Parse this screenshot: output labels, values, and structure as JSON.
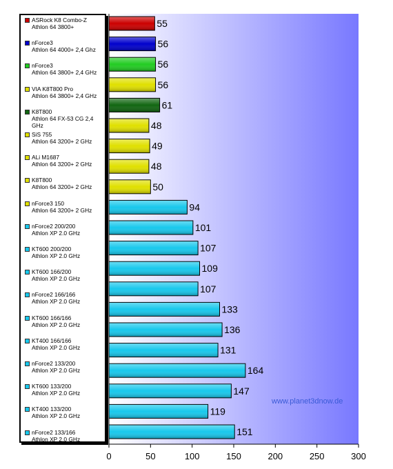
{
  "chart_data": {
    "type": "bar",
    "orientation": "horizontal",
    "grid": false,
    "legend_position": "left",
    "xlim": [
      0,
      300
    ],
    "xticks": [
      0,
      50,
      100,
      150,
      200,
      250,
      300
    ],
    "xlabel": "",
    "ylabel": "",
    "title": "",
    "background_gradient": [
      "#ffffff",
      "#7878ff"
    ],
    "categories": [
      {
        "line1": "ASRock K8 Combo-Z",
        "line2": "Athlon 64 3800+",
        "value": 55,
        "color": "#cc0000"
      },
      {
        "line1": "nForce3",
        "line2": "Athlon 64 4000+ 2,4 Ghz",
        "value": 56,
        "color": "#0000cc"
      },
      {
        "line1": "nForce3",
        "line2": "Athlon 64 3800+ 2,4 GHz",
        "value": 56,
        "color": "#22cc22"
      },
      {
        "line1": "VIA K8T800 Pro",
        "line2": "Athlon 64 3800+ 2,4 GHz",
        "value": 56,
        "color": "#e0e000"
      },
      {
        "line1": "K8T800",
        "line2": "Athlon 64 FX-53 CG 2,4 GHz",
        "value": 61,
        "color": "#116611"
      },
      {
        "line1": "SiS 755",
        "line2": "Athlon 64 3200+ 2 GHz",
        "value": 48,
        "color": "#e0e000"
      },
      {
        "line1": "ALi M1687",
        "line2": "Athlon 64 3200+ 2 GHz",
        "value": 49,
        "color": "#e0e000"
      },
      {
        "line1": "K8T800",
        "line2": "Athlon 64 3200+ 2 GHz",
        "value": 48,
        "color": "#e0e000"
      },
      {
        "line1": "nForce3 150",
        "line2": "Athlon 64 3200+ 2 GHz",
        "value": 50,
        "color": "#e0e000"
      },
      {
        "line1": "nForce2 200/200",
        "line2": "Athlon XP 2.0 GHz",
        "value": 94,
        "color": "#18c8ec"
      },
      {
        "line1": "KT600 200/200",
        "line2": "Athlon XP 2.0 GHz",
        "value": 101,
        "color": "#18c8ec"
      },
      {
        "line1": "KT600 166/200",
        "line2": "Athlon XP 2.0 GHz",
        "value": 107,
        "color": "#18c8ec"
      },
      {
        "line1": "nForce2 166/166",
        "line2": "Athlon XP 2.0 GHz",
        "value": 109,
        "color": "#18c8ec"
      },
      {
        "line1": "KT600 166/166",
        "line2": "Athlon XP 2.0 GHz",
        "value": 107,
        "color": "#18c8ec"
      },
      {
        "line1": "KT400 166/166",
        "line2": "Athlon XP 2.0 GHz",
        "value": 133,
        "color": "#18c8ec"
      },
      {
        "line1": "nForce2 133/200",
        "line2": "Athlon XP 2.0 GHz",
        "value": 136,
        "color": "#18c8ec"
      },
      {
        "line1": "KT600 133/200",
        "line2": "Athlon XP 2.0 GHz",
        "value": 131,
        "color": "#18c8ec"
      },
      {
        "line1": "KT400 133/200",
        "line2": "Athlon XP 2.0 GHz",
        "value": 164,
        "color": "#18c8ec"
      },
      {
        "line1": "nForce2 133/166",
        "line2": "Athlon XP 2.0 GHz",
        "value": 147,
        "color": "#18c8ec"
      },
      {
        "line1": "",
        "line2": "",
        "value": 119,
        "color": "#18c8ec"
      },
      {
        "line1": "",
        "line2": "",
        "value": 151,
        "color": "#18c8ec"
      }
    ],
    "watermark": "www.planet3dnow.de"
  }
}
